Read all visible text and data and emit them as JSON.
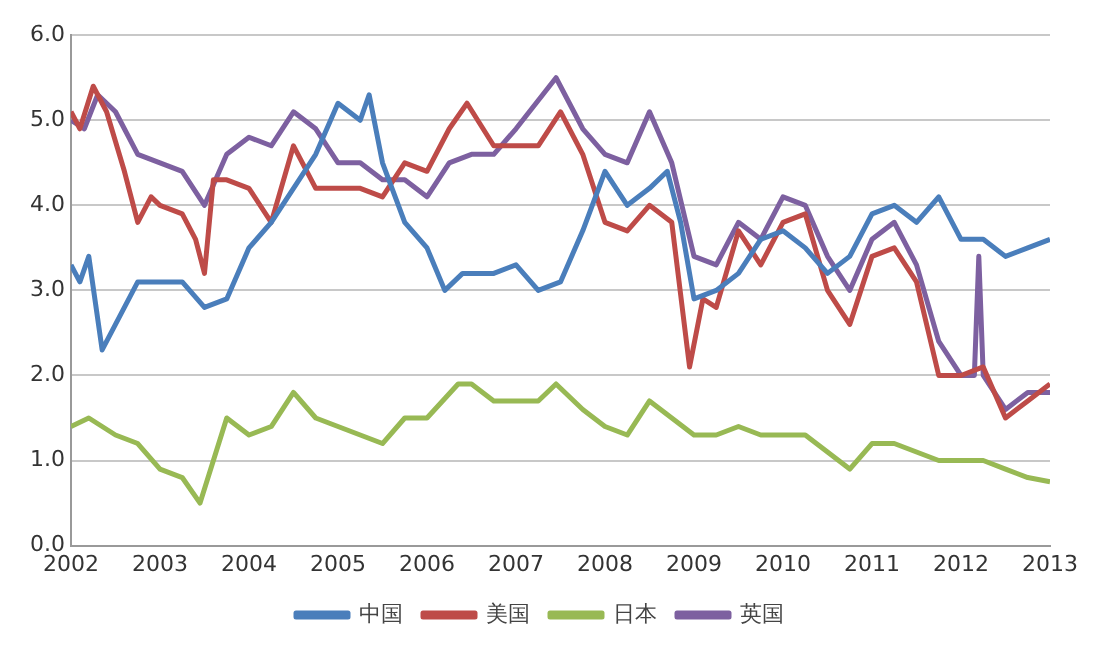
{
  "chart_data": {
    "type": "line",
    "xlim": [
      2002,
      2013
    ],
    "xticks": [
      2002,
      2003,
      2004,
      2005,
      2006,
      2007,
      2008,
      2009,
      2010,
      2011,
      2012,
      2013
    ],
    "ylim": [
      0,
      6
    ],
    "yticks": [
      {
        "value": 0,
        "label": "0.0"
      },
      {
        "value": 1,
        "label": "1.0"
      },
      {
        "value": 2,
        "label": "2.0"
      },
      {
        "value": 3,
        "label": "3.0"
      },
      {
        "value": 4,
        "label": "4.0"
      },
      {
        "value": 5,
        "label": "5.0"
      },
      {
        "value": 6,
        "label": "6.0"
      }
    ],
    "grid": "y",
    "legend": "bottom",
    "marker": "none",
    "line_style": "solid",
    "series": [
      {
        "name": "中国",
        "color": "#4a7ebb",
        "x": [
          2002,
          2002.1,
          2002.2,
          2002.35,
          2002.5,
          2002.75,
          2003,
          2003.25,
          2003.5,
          2003.75,
          2004,
          2004.25,
          2004.5,
          2004.75,
          2005,
          2005.25,
          2005.35,
          2005.5,
          2005.75,
          2006,
          2006.2,
          2006.4,
          2006.75,
          2007,
          2007.25,
          2007.5,
          2007.75,
          2008,
          2008.25,
          2008.5,
          2008.7,
          2008.85,
          2009,
          2009.25,
          2009.5,
          2009.75,
          2010,
          2010.25,
          2010.5,
          2010.75,
          2011,
          2011.25,
          2011.5,
          2011.75,
          2012,
          2012.25,
          2012.5,
          2012.75,
          2013
        ],
        "values": [
          3.3,
          3.1,
          3.4,
          2.3,
          2.6,
          3.1,
          3.1,
          3.1,
          2.8,
          2.9,
          3.5,
          3.8,
          4.2,
          4.6,
          5.2,
          5.0,
          5.3,
          4.5,
          3.8,
          3.5,
          3.0,
          3.2,
          3.2,
          3.3,
          3.0,
          3.1,
          3.7,
          4.4,
          4.0,
          4.2,
          4.4,
          3.8,
          2.9,
          3.0,
          3.2,
          3.6,
          3.7,
          3.5,
          3.2,
          3.4,
          3.9,
          4.0,
          3.8,
          4.1,
          3.6,
          3.6,
          3.4,
          3.5,
          3.6
        ]
      },
      {
        "name": "美国",
        "color": "#be4b48",
        "x": [
          2002,
          2002.1,
          2002.25,
          2002.4,
          2002.6,
          2002.75,
          2002.9,
          2003,
          2003.25,
          2003.4,
          2003.5,
          2003.6,
          2003.75,
          2004,
          2004.25,
          2004.5,
          2004.6,
          2004.75,
          2005,
          2005.25,
          2005.5,
          2005.75,
          2006,
          2006.25,
          2006.45,
          2006.75,
          2007,
          2007.25,
          2007.5,
          2007.75,
          2008,
          2008.25,
          2008.5,
          2008.75,
          2008.95,
          2009.1,
          2009.25,
          2009.5,
          2009.75,
          2010,
          2010.25,
          2010.5,
          2010.75,
          2011,
          2011.25,
          2011.5,
          2011.75,
          2012,
          2012.25,
          2012.5,
          2012.75,
          2013
        ],
        "values": [
          5.1,
          4.9,
          5.4,
          5.1,
          4.4,
          3.8,
          4.1,
          4.0,
          3.9,
          3.6,
          3.2,
          4.3,
          4.3,
          4.2,
          3.8,
          4.7,
          4.5,
          4.2,
          4.2,
          4.2,
          4.1,
          4.5,
          4.4,
          4.9,
          5.2,
          4.7,
          4.7,
          4.7,
          5.1,
          4.6,
          3.8,
          3.7,
          4.0,
          3.8,
          2.1,
          2.9,
          2.8,
          3.7,
          3.3,
          3.8,
          3.9,
          3.0,
          2.6,
          3.4,
          3.5,
          3.1,
          2.0,
          2.0,
          2.1,
          1.5,
          1.7,
          1.9
        ]
      },
      {
        "name": "日本",
        "color": "#98b954",
        "x": [
          2002,
          2002.2,
          2002.5,
          2002.75,
          2003,
          2003.25,
          2003.45,
          2003.6,
          2003.75,
          2004,
          2004.25,
          2004.5,
          2004.75,
          2005,
          2005.25,
          2005.5,
          2005.75,
          2006,
          2006.35,
          2006.5,
          2006.75,
          2007,
          2007.25,
          2007.45,
          2007.75,
          2008,
          2008.25,
          2008.5,
          2008.75,
          2009,
          2009.25,
          2009.5,
          2009.75,
          2010,
          2010.25,
          2010.5,
          2010.75,
          2011,
          2011.25,
          2011.5,
          2011.75,
          2012,
          2012.25,
          2012.5,
          2012.75,
          2013
        ],
        "values": [
          1.4,
          1.5,
          1.3,
          1.2,
          0.9,
          0.8,
          0.5,
          1.0,
          1.5,
          1.3,
          1.4,
          1.8,
          1.5,
          1.4,
          1.3,
          1.2,
          1.5,
          1.5,
          1.9,
          1.9,
          1.7,
          1.7,
          1.7,
          1.9,
          1.6,
          1.4,
          1.3,
          1.7,
          1.5,
          1.3,
          1.3,
          1.4,
          1.3,
          1.3,
          1.3,
          1.1,
          0.9,
          1.2,
          1.2,
          1.1,
          1.0,
          1.0,
          1.0,
          0.9,
          0.8,
          0.75
        ]
      },
      {
        "name": "英国",
        "color": "#7d60a0",
        "x": [
          2002,
          2002.15,
          2002.3,
          2002.5,
          2002.75,
          2003,
          2003.25,
          2003.5,
          2003.75,
          2004,
          2004.25,
          2004.5,
          2004.75,
          2005,
          2005.25,
          2005.5,
          2005.75,
          2006,
          2006.25,
          2006.5,
          2006.75,
          2007,
          2007.3,
          2007.45,
          2007.75,
          2008,
          2008.25,
          2008.5,
          2008.75,
          2009,
          2009.25,
          2009.5,
          2009.75,
          2010,
          2010.25,
          2010.5,
          2010.75,
          2011,
          2011.25,
          2011.5,
          2011.75,
          2012,
          2012.15,
          2012.2,
          2012.25,
          2012.5,
          2012.75,
          2013
        ],
        "values": [
          5.0,
          4.9,
          5.3,
          5.1,
          4.6,
          4.5,
          4.4,
          4.0,
          4.6,
          4.8,
          4.7,
          5.1,
          4.9,
          4.5,
          4.5,
          4.3,
          4.3,
          4.1,
          4.5,
          4.6,
          4.6,
          4.9,
          5.3,
          5.5,
          4.9,
          4.6,
          4.5,
          5.1,
          4.5,
          3.4,
          3.3,
          3.8,
          3.6,
          4.1,
          4.0,
          3.4,
          3.0,
          3.6,
          3.8,
          3.3,
          2.4,
          2.0,
          2.0,
          3.4,
          2.0,
          1.6,
          1.8,
          1.8
        ]
      }
    ]
  }
}
